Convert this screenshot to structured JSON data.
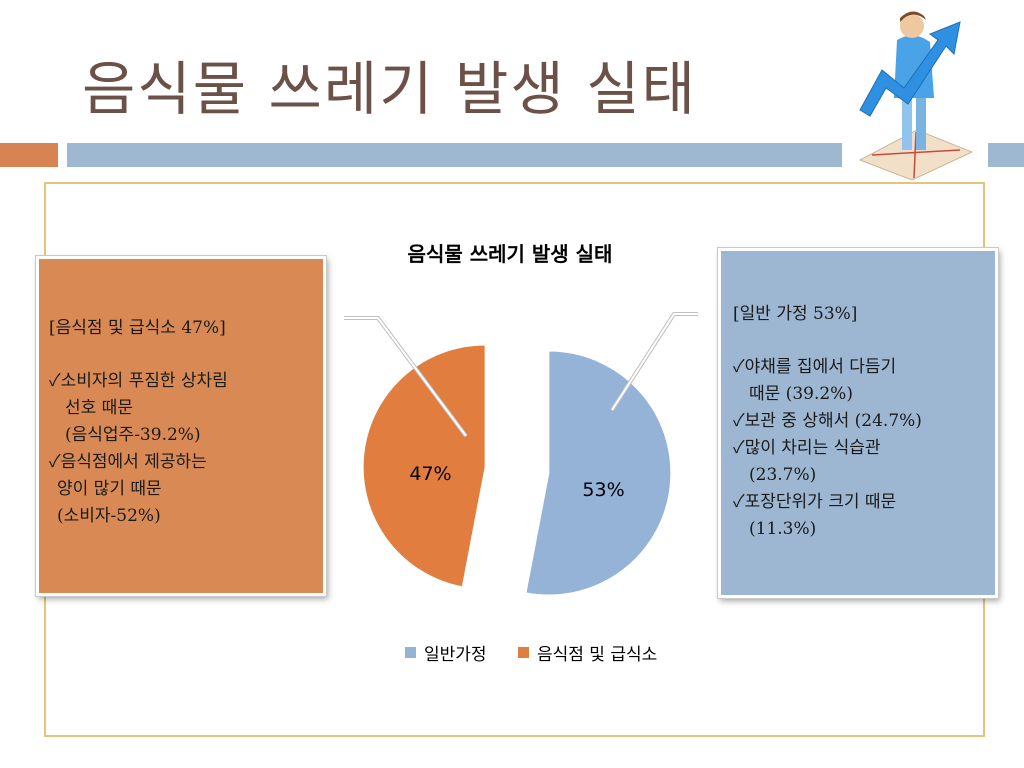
{
  "slide": {
    "title": "음식물 쓰레기 발생 실태"
  },
  "colors": {
    "household": "#95b3d7",
    "restaurant": "#e07d3f",
    "title_text": "#6b5147",
    "frame": "#e3c578"
  },
  "left_box": {
    "heading": "[음식점 및 급식소 47%]",
    "lines": [
      "✓소비자의 푸짐한 상차림",
      "선호 때문",
      "(음식업주-39.2%)",
      "✓음식점에서 제공하는",
      "양이 많기 때문",
      "(소비자-52%)"
    ]
  },
  "right_box": {
    "heading": "[일반 가정 53%]",
    "lines": [
      "✓야채를 집에서 다듬기",
      "때문 (39.2%)",
      "✓보관 중 상해서 (24.7%)",
      "✓많이 차리는 식습관",
      "(23.7%)",
      "✓포장단위가 크기 때문",
      "(11.3%)"
    ]
  },
  "chart_data": {
    "type": "pie",
    "title": "음식물 쓰레기 발생 실태",
    "categories": [
      "일반가정",
      "음식점 및 급식소"
    ],
    "values": [
      53,
      47
    ],
    "data_labels": [
      "53%",
      "47%"
    ],
    "legend_position": "bottom"
  },
  "legend": {
    "items": [
      "일반가정",
      "음식점 및 급식소"
    ]
  }
}
